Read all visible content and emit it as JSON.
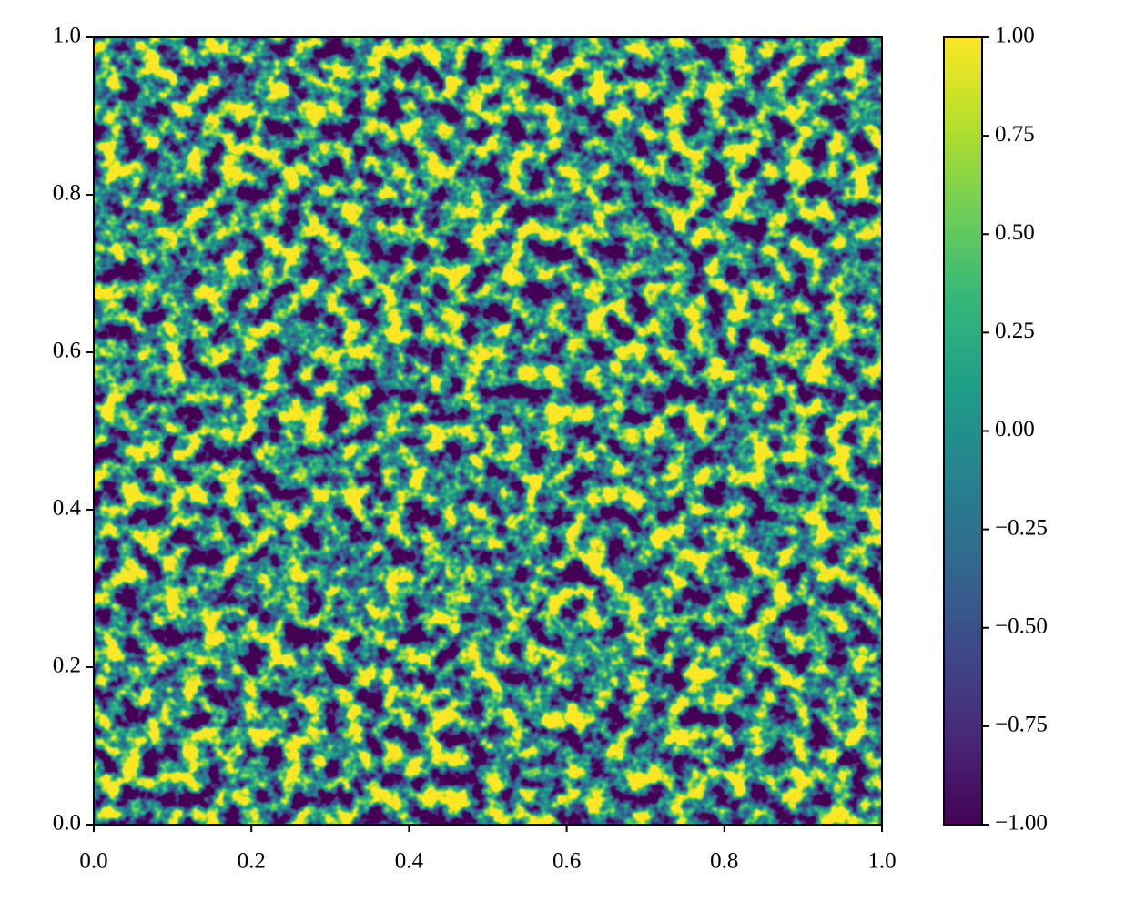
{
  "chart_data": {
    "type": "contourf",
    "colormap": [
      "#440154",
      "#482878",
      "#3e4989",
      "#31688e",
      "#26828e",
      "#1f9e89",
      "#35b779",
      "#6ece58",
      "#b5de2b",
      "#fde725"
    ],
    "xlim": [
      0,
      1
    ],
    "ylim": [
      0,
      1
    ],
    "xticks": [
      {
        "value": 0,
        "label": "0.0"
      },
      {
        "value": 0.2,
        "label": "0.2"
      },
      {
        "value": 0.4,
        "label": "0.4"
      },
      {
        "value": 0.6,
        "label": "0.6"
      },
      {
        "value": 0.8,
        "label": "0.8"
      },
      {
        "value": 1,
        "label": "1.0"
      }
    ],
    "yticks": [
      {
        "value": 0,
        "label": "0.0"
      },
      {
        "value": 0.2,
        "label": "0.2"
      },
      {
        "value": 0.4,
        "label": "0.4"
      },
      {
        "value": 0.6,
        "label": "0.6"
      },
      {
        "value": 0.8,
        "label": "0.8"
      },
      {
        "value": 1,
        "label": "1.0"
      }
    ],
    "colorbar_lim": [
      -1,
      1
    ],
    "colorbar_ticks": [
      {
        "value": -1,
        "label": "−1.00"
      },
      {
        "value": -0.75,
        "label": "−0.75"
      },
      {
        "value": -0.5,
        "label": "−0.50"
      },
      {
        "value": -0.25,
        "label": "−0.25"
      },
      {
        "value": 0,
        "label": "0.00"
      },
      {
        "value": 0.25,
        "label": "0.25"
      },
      {
        "value": 0.5,
        "label": "0.50"
      },
      {
        "value": 0.75,
        "label": "0.75"
      },
      {
        "value": 1,
        "label": "1.00"
      }
    ]
  }
}
